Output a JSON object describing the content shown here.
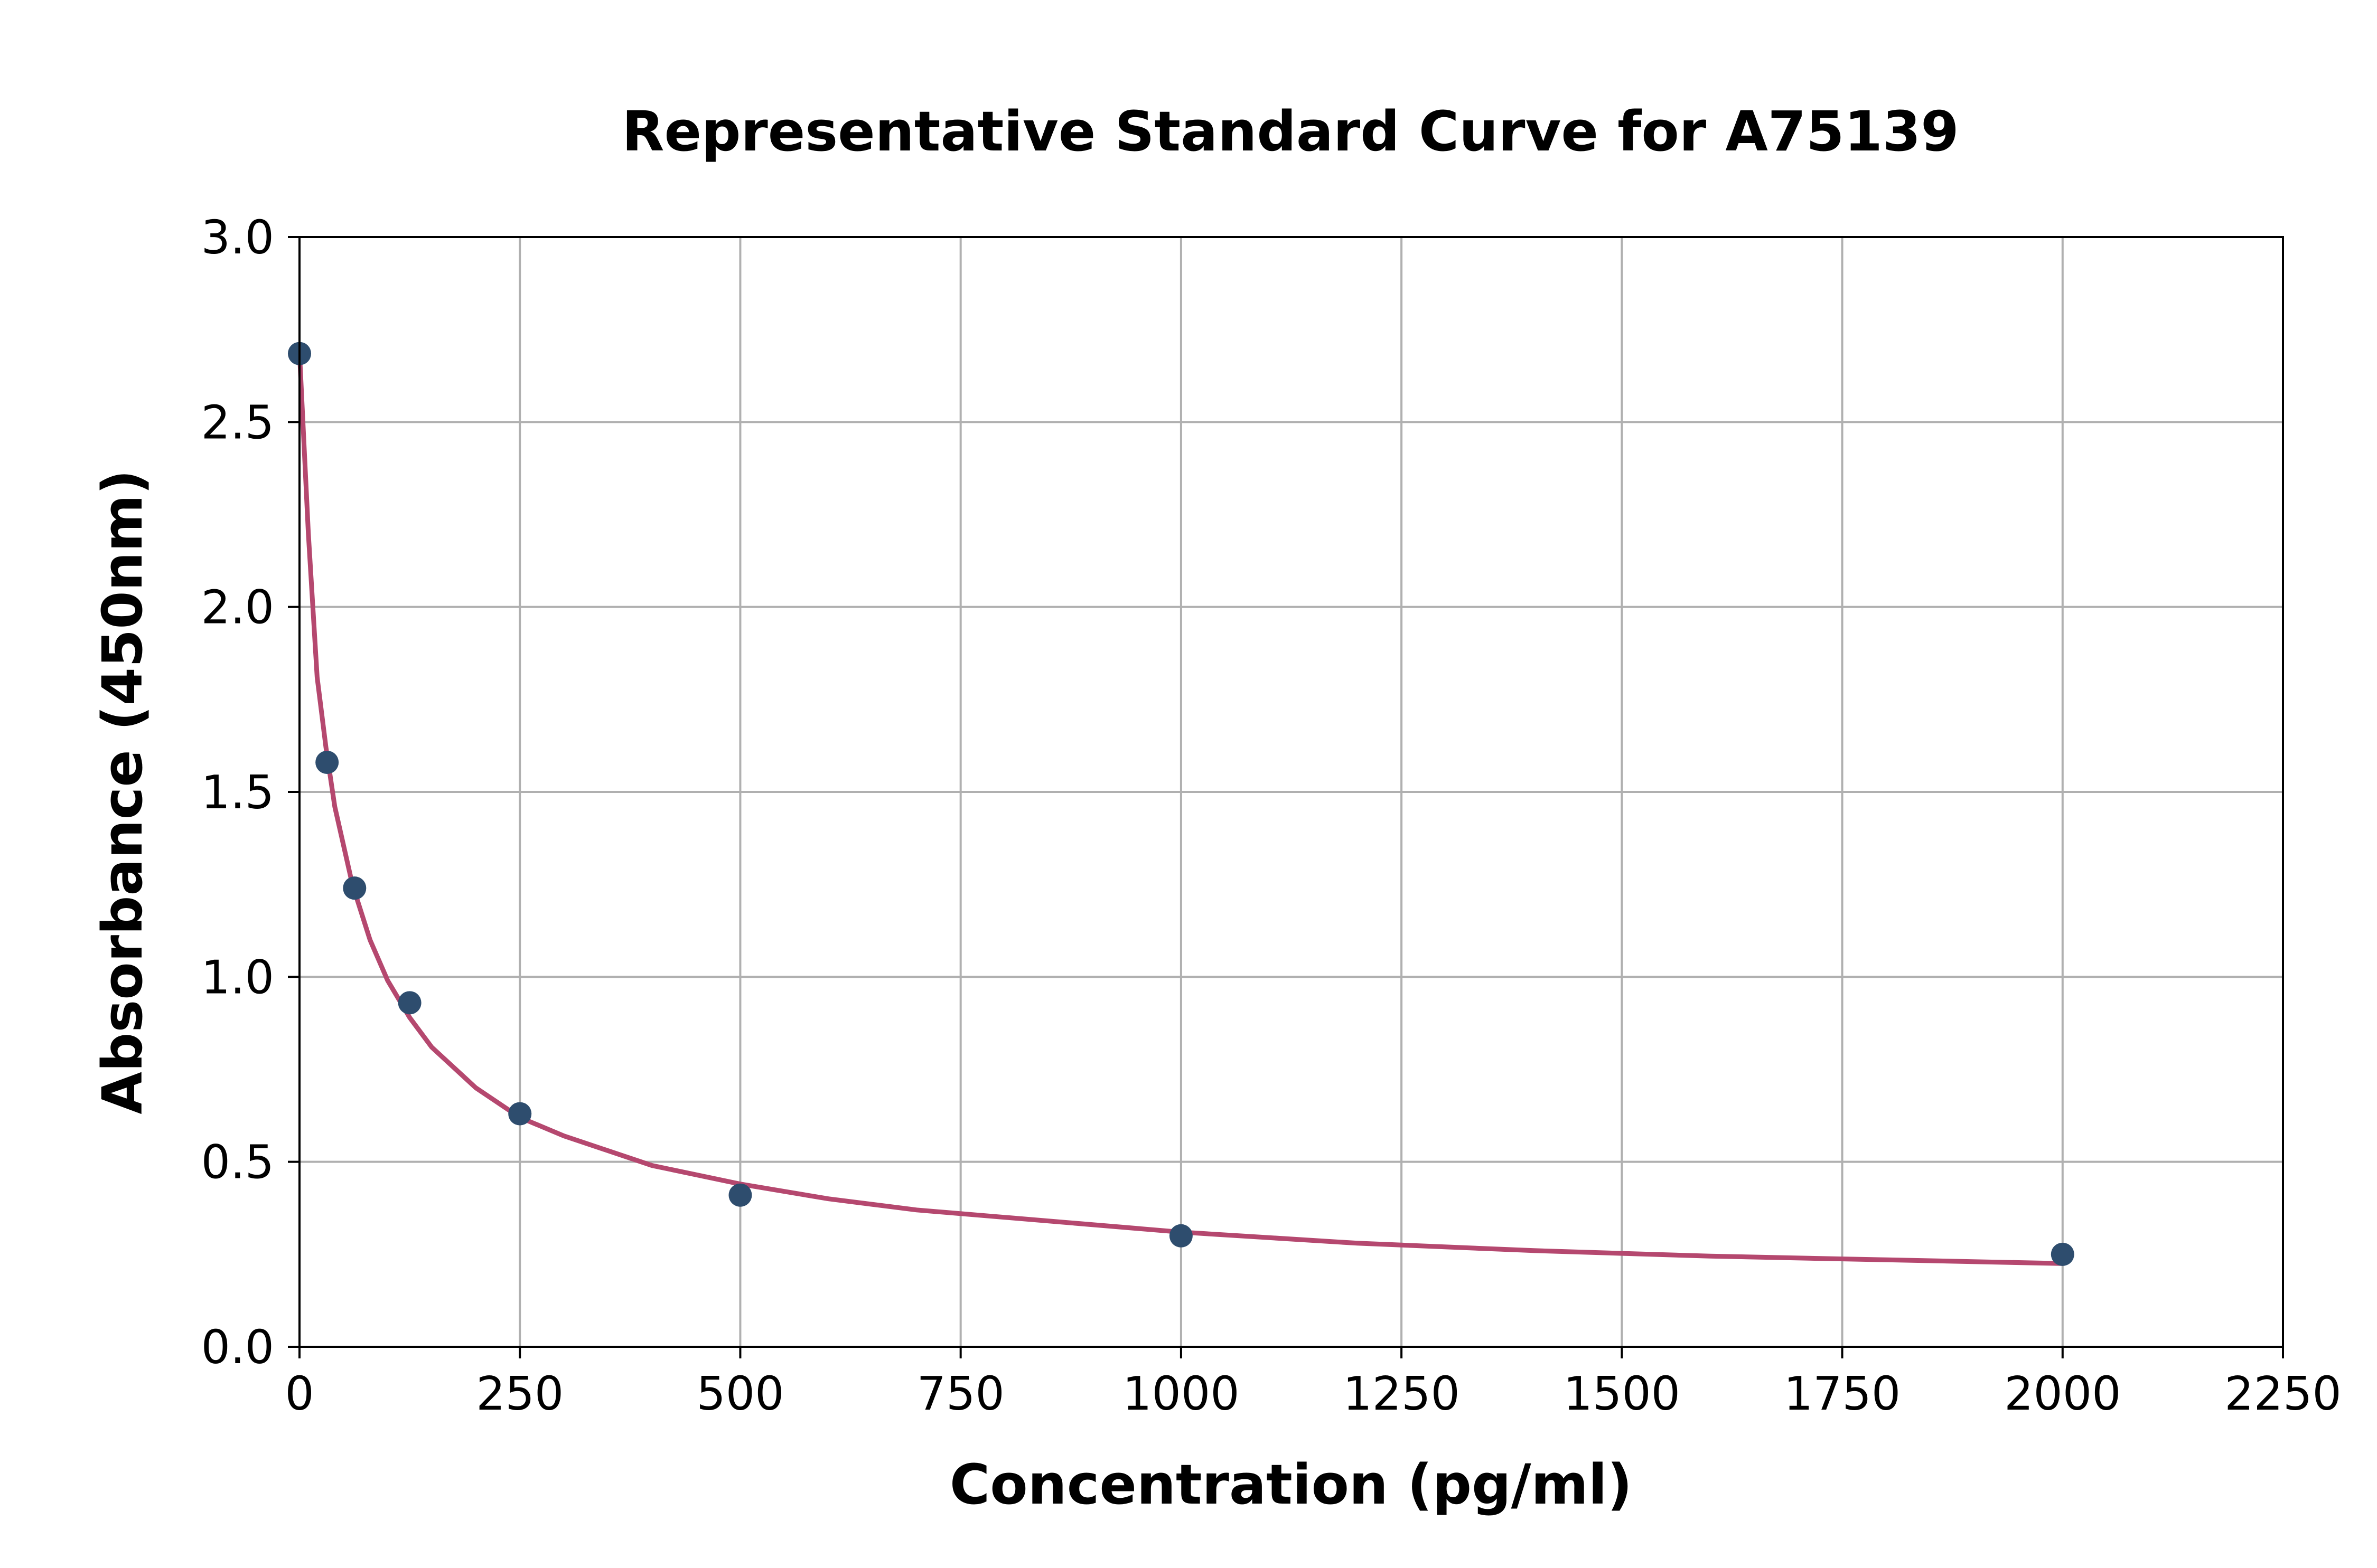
{
  "chart_data": {
    "type": "scatter",
    "title": "Representative Standard Curve for A75139",
    "xlabel": "Concentration (pg/ml)",
    "ylabel": "Absorbance (450nm)",
    "xlim": [
      0,
      2250
    ],
    "ylim": [
      0,
      3.0
    ],
    "xticks": [
      "0",
      "250",
      "500",
      "750",
      "1000",
      "1250",
      "1500",
      "1750",
      "2000",
      "2250"
    ],
    "yticks": [
      "0.0",
      "0.5",
      "1.0",
      "1.5",
      "2.0",
      "2.5",
      "3.0"
    ],
    "grid": true,
    "series": [
      {
        "kind": "points",
        "color": "#2e4d6e",
        "x": [
          0,
          31.25,
          62.5,
          125,
          250,
          500,
          1000,
          2000
        ],
        "y": [
          2.685,
          1.58,
          1.24,
          0.93,
          0.63,
          0.41,
          0.3,
          0.25
        ]
      },
      {
        "kind": "fit-line",
        "color": "#b5486f",
        "x": [
          0,
          10,
          20,
          30,
          40,
          60,
          80,
          100,
          125,
          150,
          200,
          250,
          300,
          400,
          500,
          600,
          700,
          800,
          1000,
          1200,
          1400,
          1600,
          1800,
          2000
        ],
        "y": [
          2.69,
          2.2,
          1.81,
          1.62,
          1.46,
          1.25,
          1.1,
          0.99,
          0.89,
          0.81,
          0.7,
          0.62,
          0.57,
          0.49,
          0.44,
          0.4,
          0.37,
          0.35,
          0.31,
          0.28,
          0.26,
          0.245,
          0.235,
          0.225
        ]
      }
    ]
  }
}
